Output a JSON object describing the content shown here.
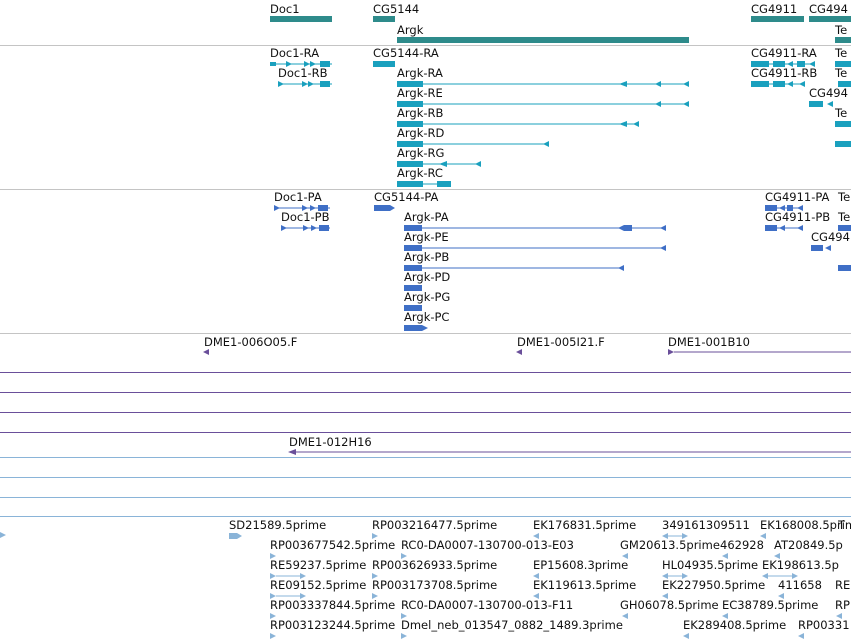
{
  "colors": {
    "gene": "#2e8b8b",
    "transcript": "#1aa0be",
    "protein": "#3f6fc6",
    "clone": "#6a4f9a",
    "est": "#8ab4d8",
    "separator": "#c4c4c4"
  },
  "genes": {
    "doc1": "Doc1",
    "cg5144": "CG5144",
    "argk": "Argk",
    "cg4911": "CG4911",
    "cg494": "CG494"
  },
  "transcripts": {
    "doc1_ra": "Doc1-RA",
    "doc1_rb": "Doc1-RB",
    "cg5144_ra": "CG5144-RA",
    "argk_ra": "Argk-RA",
    "argk_re": "Argk-RE",
    "argk_rb": "Argk-RB",
    "argk_rd": "Argk-RD",
    "argk_rg": "Argk-RG",
    "argk_rc": "Argk-RC",
    "cg4911_ra": "CG4911-RA",
    "cg4911_rb": "CG4911-RB",
    "cg494": "CG494",
    "te1": "Te",
    "te2": "Te",
    "te3": "Te"
  },
  "proteins": {
    "doc1_pa": "Doc1-PA",
    "doc1_pb": "Doc1-PB",
    "cg5144_pa": "CG5144-PA",
    "argk_pa": "Argk-PA",
    "argk_pe": "Argk-PE",
    "argk_pb": "Argk-PB",
    "argk_pd": "Argk-PD",
    "argk_pg": "Argk-PG",
    "argk_pc": "Argk-PC",
    "cg4911_pa": "CG4911-PA",
    "cg4911_pb": "CG4911-PB",
    "cg494": "CG494",
    "te1": "Te",
    "te2": "Te"
  },
  "clones": {
    "c1": "DME1-006O05.F",
    "c2": "DME1-005I21.F",
    "c3": "DME1-001B10",
    "c4": "DME1-012H16"
  },
  "ests": {
    "e01": "SD21589.5prime",
    "e02": "RP003216477.5prime",
    "e03": "EK176831.5prime",
    "e04": "349161309511",
    "e05": "EK168008.5prime",
    "e06": "RP003677542.5prime",
    "e07": "RC0-DA0007-130700-013-E03",
    "e08": "GM20613.5prime",
    "e09": "462928",
    "e10": "AT20849.5p",
    "e11": "RE59237.5prime",
    "e12": "RP003626933.5prime",
    "e13": "EP15608.3prime",
    "e14": "HL04935.5prime",
    "e15": "EK198613.5p",
    "e16": "RE09152.5prime",
    "e17": "RP003173708.5prime",
    "e18": "EK119613.5prime",
    "e19": "EK227950.5prime",
    "e20": "411658",
    "e21": "RE",
    "e22": "RP003337844.5prime",
    "e23": "RC0-DA0007-130700-013-F11",
    "e24": "GH06078.5prime",
    "e25": "EC38789.5prime",
    "e26": "RP",
    "e27": "RP003123244.5prime",
    "e28": "Dmel_neb_013547_0882_1489.3prime",
    "e29": "EK289408.5prime",
    "e30": "RP00331"
  }
}
